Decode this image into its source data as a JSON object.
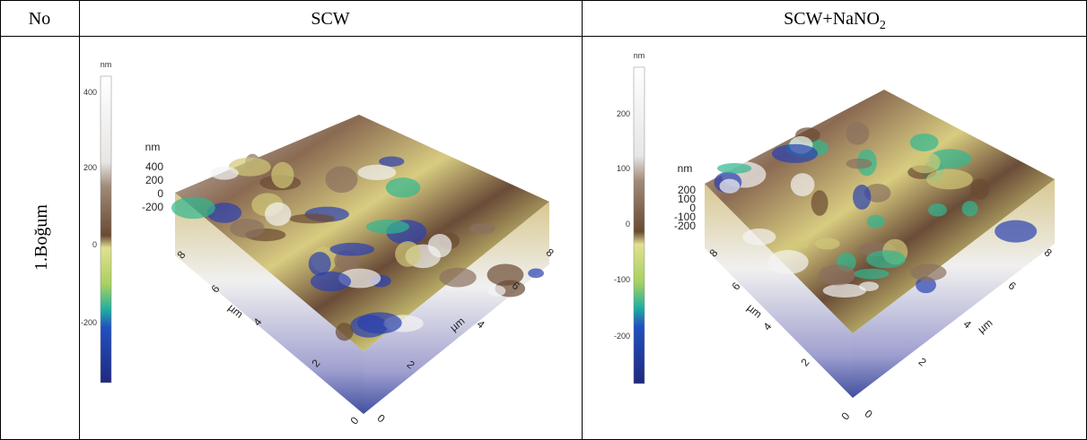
{
  "table": {
    "headers": {
      "no": "No",
      "col1": "SCW",
      "col2": {
        "base": "SCW+NaNO",
        "sub": "2"
      }
    },
    "rows": [
      {
        "label": "1.Boğum",
        "images": [
          {
            "colorbar": {
              "unit": "nm",
              "ticks": [
                400,
                200,
                0,
                -200
              ]
            },
            "z_axis": {
              "unit": "nm",
              "ticks": [
                400,
                200,
                0,
                -200
              ]
            },
            "x_axis": {
              "unit": "µm",
              "ticks": [
                0,
                2,
                4,
                6,
                8
              ]
            },
            "y_axis": {
              "unit": "µm",
              "ticks": [
                0,
                2,
                4,
                6,
                8
              ]
            }
          },
          {
            "colorbar": {
              "unit": "nm",
              "ticks": [
                200,
                100,
                0,
                -100,
                -200
              ]
            },
            "z_axis": {
              "unit": "nm",
              "ticks": [
                200,
                100,
                0,
                -100,
                -200
              ]
            },
            "x_axis": {
              "unit": "µm",
              "ticks": [
                0,
                2,
                4,
                6,
                8
              ]
            },
            "y_axis": {
              "unit": "µm",
              "ticks": [
                0,
                2,
                4,
                6,
                8
              ]
            }
          }
        ]
      }
    ]
  }
}
